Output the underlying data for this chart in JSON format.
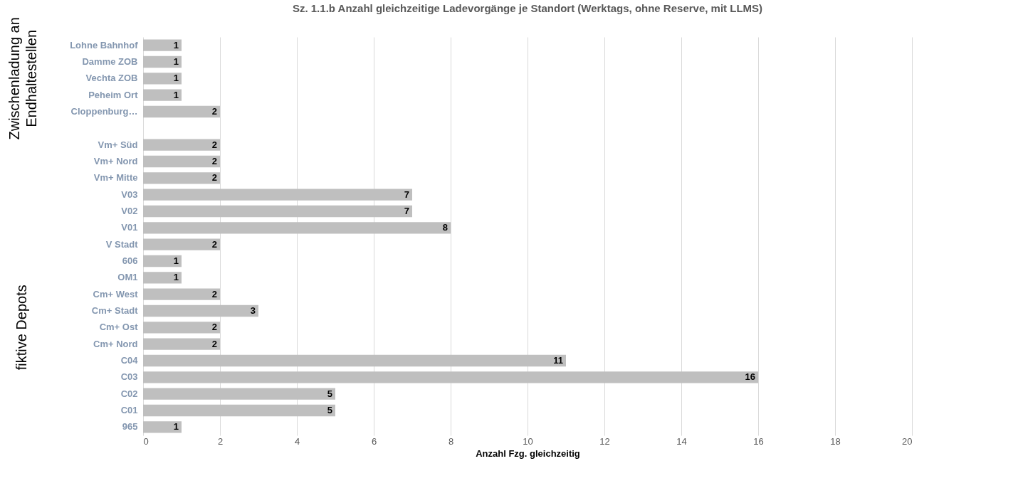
{
  "chart_data": {
    "type": "bar",
    "orientation": "horizontal",
    "title": "Sz. 1.1.b Anzahl gleichzeitige Ladevorgänge je Standort  (Werktags, ohne Reserve, mit LLMS)",
    "xlabel": "Anzahl Fzg. gleichzeitig",
    "categories": [
      "Lohne Bahnhof",
      "Damme ZOB",
      "Vechta ZOB",
      "Peheim Ort",
      "Cloppenburg…",
      null,
      "Vm+ Süd",
      "Vm+ Nord",
      "Vm+ Mitte",
      "V03",
      "V02",
      "V01",
      "V Stadt",
      "606",
      "OM1",
      "Cm+ West",
      "Cm+ Stadt",
      "Cm+ Ost",
      "Cm+ Nord",
      "C04",
      "C03",
      "C02",
      "C01",
      "965"
    ],
    "values": [
      1,
      1,
      1,
      1,
      2,
      null,
      2,
      2,
      2,
      7,
      7,
      8,
      2,
      1,
      1,
      2,
      3,
      2,
      2,
      11,
      16,
      5,
      5,
      1
    ],
    "color": "#bfbfbf",
    "data_labels": true,
    "xlim": [
      0,
      20
    ],
    "xticks": [
      0,
      2,
      4,
      6,
      8,
      10,
      12,
      14,
      16,
      18,
      20
    ],
    "grid": "x",
    "annotations": [
      "Zwischenladung an Endhaltestellen",
      "fiktive Depots"
    ]
  }
}
